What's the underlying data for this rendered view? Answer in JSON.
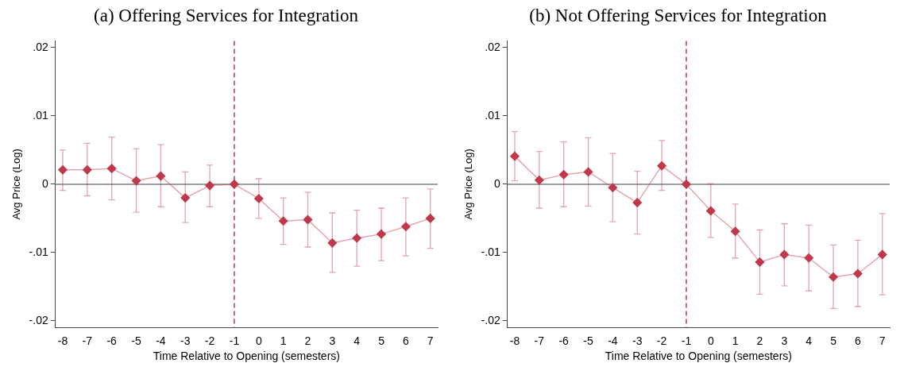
{
  "chart_data": [
    {
      "type": "line",
      "title": "(a) Offering Services for Integration",
      "xlabel": "Time Relative to Opening (semesters)",
      "ylabel": "Avg Price (Log)",
      "x": [
        -8,
        -7,
        -6,
        -5,
        -4,
        -3,
        -2,
        -1,
        0,
        1,
        2,
        3,
        4,
        5,
        6,
        7
      ],
      "series": [
        {
          "color": "#c0394b",
          "values": [
            0.0021,
            0.0021,
            0.0023,
            0.0005,
            0.0012,
            -0.002,
            -0.0002,
            0,
            -0.0021,
            -0.0054,
            -0.0052,
            -0.0086,
            -0.0079,
            -0.0073,
            -0.0062,
            -0.005
          ],
          "errors": [
            [
              -0.0009,
              0.005
            ],
            [
              -0.0017,
              0.006
            ],
            [
              -0.0023,
              0.0069
            ],
            [
              -0.0041,
              0.0052
            ],
            [
              -0.0033,
              0.0058
            ],
            [
              -0.0056,
              0.0018
            ],
            [
              -0.0033,
              0.0028
            ],
            null,
            [
              -0.005,
              0.0008
            ],
            [
              -0.0088,
              -0.002
            ],
            [
              -0.0092,
              -0.0012
            ],
            [
              -0.0129,
              -0.0042
            ],
            [
              -0.012,
              -0.0038
            ],
            [
              -0.0112,
              -0.0035
            ],
            [
              -0.0105,
              -0.002
            ],
            [
              -0.0094,
              -0.0007
            ]
          ]
        }
      ],
      "xlim": [
        -8.3,
        7.3
      ],
      "xticks": [
        -8,
        -7,
        -6,
        -5,
        -4,
        -3,
        -2,
        -1,
        0,
        1,
        2,
        3,
        4,
        5,
        6,
        7
      ],
      "ylim": [
        -0.021,
        0.021
      ],
      "yticks": [
        {
          "value": -0.02,
          "label": "-.02"
        },
        {
          "value": -0.01,
          "label": "-.01"
        },
        0,
        {
          "value": 0.01,
          "label": ".01"
        },
        {
          "value": 0.02,
          "label": ".02"
        }
      ],
      "ref_lines": [
        {
          "axis": "y",
          "value": 0,
          "color": "#7f7f7f",
          "line_style": "solid"
        },
        {
          "axis": "x",
          "value": -1,
          "color": "#c0394b",
          "line_style": "dashed"
        }
      ],
      "grid": false,
      "legend": false,
      "marker": "diamond",
      "line_style": "solid"
    },
    {
      "type": "line",
      "title": "(b) Not Offering Services for Integration",
      "xlabel": "Time Relative to Opening (semesters)",
      "ylabel": "Avg Price (Log)",
      "x": [
        -8,
        -7,
        -6,
        -5,
        -4,
        -3,
        -2,
        -1,
        0,
        1,
        2,
        3,
        4,
        5,
        6,
        7
      ],
      "series": [
        {
          "color": "#c0394b",
          "values": [
            0.0041,
            0.0006,
            0.0014,
            0.0018,
            -0.0005,
            -0.0027,
            0.0027,
            0,
            -0.0039,
            -0.0069,
            -0.0114,
            -0.0103,
            -0.0108,
            -0.0136,
            -0.0131,
            -0.0103
          ],
          "errors": [
            [
              0.0005,
              0.0077
            ],
            [
              -0.0035,
              0.0048
            ],
            [
              -0.0033,
              0.0062
            ],
            [
              -0.0032,
              0.0068
            ],
            [
              -0.0055,
              0.0045
            ],
            [
              -0.0073,
              0.0019
            ],
            [
              -0.0009,
              0.0064
            ],
            null,
            [
              -0.0078,
              0.0001
            ],
            [
              -0.0108,
              -0.0029
            ],
            [
              -0.0161,
              -0.0067
            ],
            [
              -0.0149,
              -0.0058
            ],
            [
              -0.0156,
              -0.006
            ],
            [
              -0.0182,
              -0.0089
            ],
            [
              -0.0179,
              -0.0082
            ],
            [
              -0.0162,
              -0.0043
            ]
          ]
        }
      ],
      "xlim": [
        -8.3,
        7.3
      ],
      "xticks": [
        -8,
        -7,
        -6,
        -5,
        -4,
        -3,
        -2,
        -1,
        0,
        1,
        2,
        3,
        4,
        5,
        6,
        7
      ],
      "ylim": [
        -0.021,
        0.021
      ],
      "yticks": [
        {
          "value": -0.02,
          "label": "-.02"
        },
        {
          "value": -0.01,
          "label": "-.01"
        },
        0,
        {
          "value": 0.01,
          "label": ".01"
        },
        {
          "value": 0.02,
          "label": ".02"
        }
      ],
      "ref_lines": [
        {
          "axis": "y",
          "value": 0,
          "color": "#7f7f7f",
          "line_style": "solid"
        },
        {
          "axis": "x",
          "value": -1,
          "color": "#c0394b",
          "line_style": "dashed"
        }
      ],
      "grid": false,
      "legend": false,
      "marker": "diamond",
      "line_style": "solid"
    }
  ]
}
